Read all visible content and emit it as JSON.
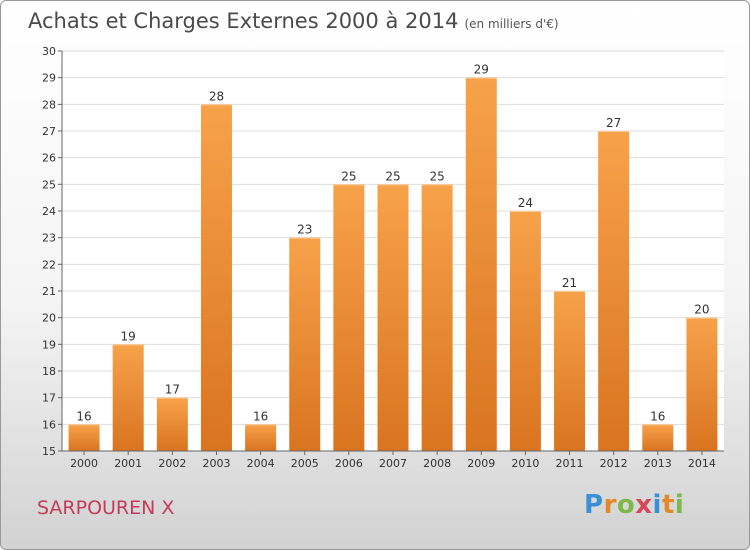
{
  "header": {
    "title": "Achats et Charges Externes 2000 à 2014",
    "subtitle": "(en milliers d'€)"
  },
  "footer": {
    "city": "SARPOUREN X",
    "logo_text": "Proxiti",
    "logo_letters": [
      {
        "ch": "P",
        "color": "#3a8fd8"
      },
      {
        "ch": "r",
        "color": "#e2892a"
      },
      {
        "ch": "o",
        "color": "#7cb84a"
      },
      {
        "ch": "x",
        "color": "#d8465a"
      },
      {
        "ch": "i",
        "color": "#3a8fd8"
      },
      {
        "ch": "t",
        "color": "#e2892a"
      },
      {
        "ch": "i",
        "color": "#7cb84a"
      }
    ]
  },
  "colors": {
    "bar_light": "#f7a24a",
    "bar_dark": "#d9741f",
    "grid": "#dddddd",
    "axis": "#666666",
    "text": "#333333"
  },
  "chart_data": {
    "type": "bar",
    "categories": [
      "2000",
      "2001",
      "2002",
      "2003",
      "2004",
      "2005",
      "2006",
      "2007",
      "2008",
      "2009",
      "2010",
      "2011",
      "2012",
      "2013",
      "2014"
    ],
    "values": [
      16,
      19,
      17,
      28,
      16,
      23,
      25,
      25,
      25,
      29,
      24,
      21,
      27,
      16,
      20
    ],
    "title": "Achats et Charges Externes 2000 à 2014",
    "xlabel": "",
    "ylabel": "",
    "ylim": [
      15,
      30
    ],
    "yticks": [
      15,
      16,
      17,
      18,
      19,
      20,
      21,
      22,
      23,
      24,
      25,
      26,
      27,
      28,
      29,
      30
    ],
    "grid": true,
    "data_labels": true
  }
}
